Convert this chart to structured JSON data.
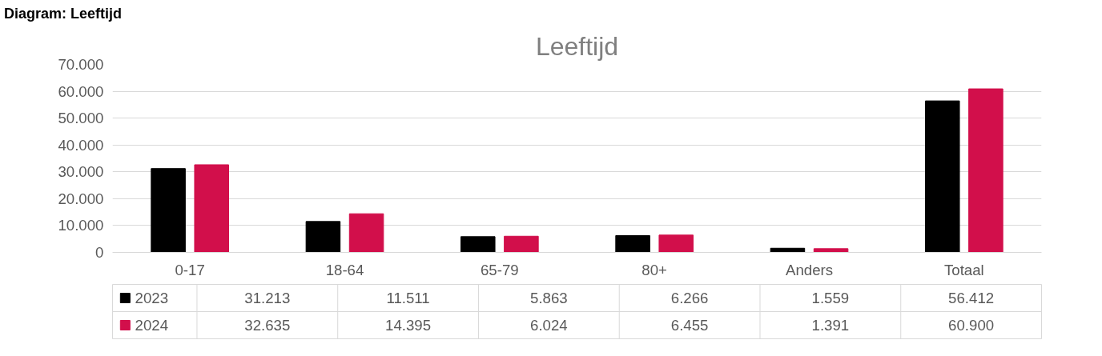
{
  "chart_data": {
    "type": "bar",
    "title": "Leeftijd",
    "annotations": [
      "Diagram: Leeftijd"
    ],
    "categories": [
      "0-17",
      "18-64",
      "65-79",
      "80+",
      "Anders",
      "Totaal"
    ],
    "series": [
      {
        "name": "2023",
        "color": "#000000",
        "values": [
          31213,
          11511,
          5863,
          6266,
          1559,
          56412
        ],
        "value_labels": [
          "31.213",
          "11.511",
          "5.863",
          "6.266",
          "1.559",
          "56.412"
        ]
      },
      {
        "name": "2024",
        "color": "#d20f4b",
        "values": [
          32635,
          14395,
          6024,
          6455,
          1391,
          60900
        ],
        "value_labels": [
          "32.635",
          "14.395",
          "6.024",
          "6.455",
          "1.391",
          "60.900"
        ]
      }
    ],
    "ylim": [
      0,
      70000
    ],
    "yticks": [
      {
        "value": 0,
        "label": "0"
      },
      {
        "value": 10000,
        "label": "10.000"
      },
      {
        "value": 20000,
        "label": "20.000"
      },
      {
        "value": 30000,
        "label": "30.000"
      },
      {
        "value": 40000,
        "label": "40.000"
      },
      {
        "value": 50000,
        "label": "50.000"
      },
      {
        "value": 60000,
        "label": "60.000"
      },
      {
        "value": 70000,
        "label": "70.000"
      }
    ],
    "grid": "y",
    "legend": "bottom"
  }
}
